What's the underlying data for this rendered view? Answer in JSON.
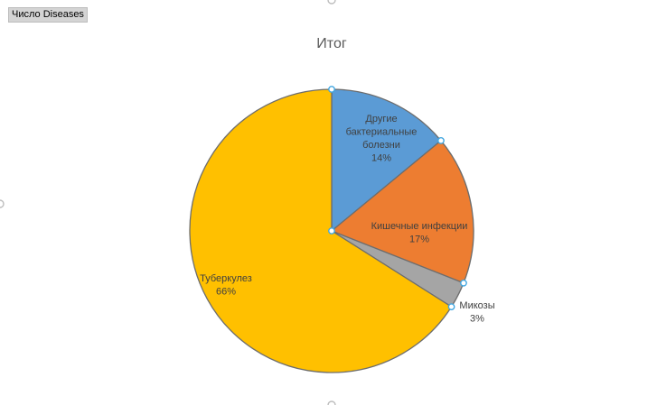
{
  "pivot_field_button": {
    "label": "Число Diseases"
  },
  "chart_data": {
    "type": "pie",
    "title": "Итог",
    "series_name": "Число Diseases",
    "slices": [
      {
        "name": "Другие бактериальные болезни",
        "label_lines": [
          "Другие",
          "бактериальные",
          "болезни"
        ],
        "percent": 14,
        "percent_label": "14%",
        "color": "#5b9bd5"
      },
      {
        "name": "Кишечные инфекции",
        "label_lines": [
          "Кишечные инфекции"
        ],
        "percent": 17,
        "percent_label": "17%",
        "color": "#ed7d31"
      },
      {
        "name": "Микозы",
        "label_lines": [
          "Микозы"
        ],
        "percent": 3,
        "percent_label": "3%",
        "color": "#a5a5a5"
      },
      {
        "name": "Туберкулез",
        "label_lines": [
          "Туберкулез"
        ],
        "percent": 66,
        "percent_label": "66%",
        "color": "#ffc000"
      }
    ],
    "start_angle_deg": 0,
    "direction": "clockwise",
    "slice_border_color": "#6d6d6d",
    "selection_handle_color": "#41a6e0",
    "legend": "none"
  }
}
